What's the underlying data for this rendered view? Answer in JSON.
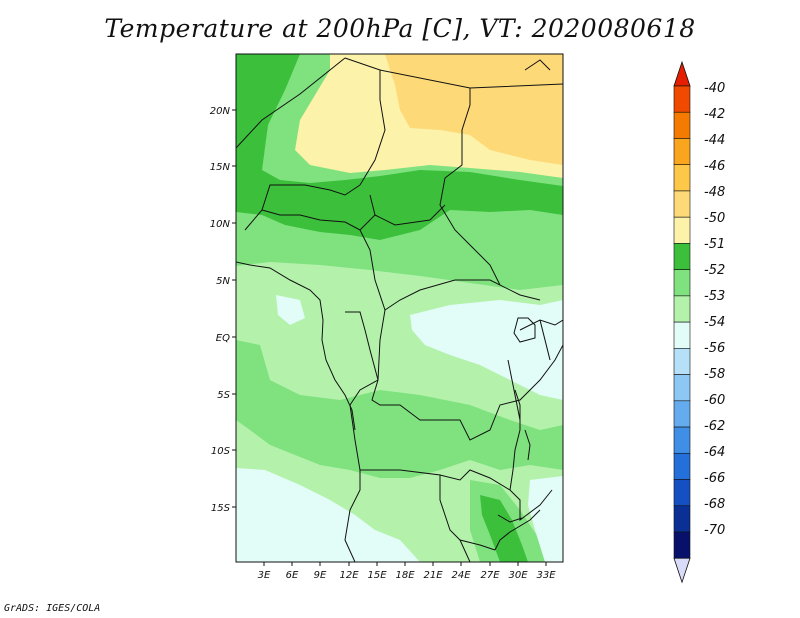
{
  "title": "Temperature at 200hPa [C], VT: 2020080618",
  "credit": "GrADS: IGES/COLA",
  "map": {
    "lat_labels": [
      "20N",
      "15N",
      "10N",
      "5N",
      "EQ",
      "5S",
      "10S",
      "15S"
    ],
    "lon_labels": [
      "3E",
      "6E",
      "9E",
      "12E",
      "15E",
      "18E",
      "21E",
      "24E",
      "27E",
      "30E",
      "33E"
    ],
    "colors": {
      "warm_48": "#fdd978",
      "warm_50": "#fdf2aa",
      "green_51": "#3cc03c",
      "green_52": "#7fe27f",
      "green_53": "#b4f2ac",
      "pale_54": "#e2fcf8",
      "border": "#111111"
    }
  },
  "colorbar": {
    "labels": [
      "-40",
      "-42",
      "-44",
      "-46",
      "-48",
      "-50",
      "-51",
      "-52",
      "-53",
      "-54",
      "-56",
      "-58",
      "-60",
      "-62",
      "-64",
      "-66",
      "-68",
      "-70"
    ],
    "colors": [
      "#e61e00",
      "#f04a00",
      "#f57a00",
      "#faa51e",
      "#fdc84a",
      "#fdd978",
      "#fdf2aa",
      "#3cc03c",
      "#7fe27f",
      "#b4f2ac",
      "#e2fcf8",
      "#b5e0f8",
      "#8dc7f3",
      "#64acee",
      "#3f8fe6",
      "#2470db",
      "#1450c2",
      "#0a2f95",
      "#07116b"
    ],
    "low_triangle": "#d8dcf8"
  }
}
